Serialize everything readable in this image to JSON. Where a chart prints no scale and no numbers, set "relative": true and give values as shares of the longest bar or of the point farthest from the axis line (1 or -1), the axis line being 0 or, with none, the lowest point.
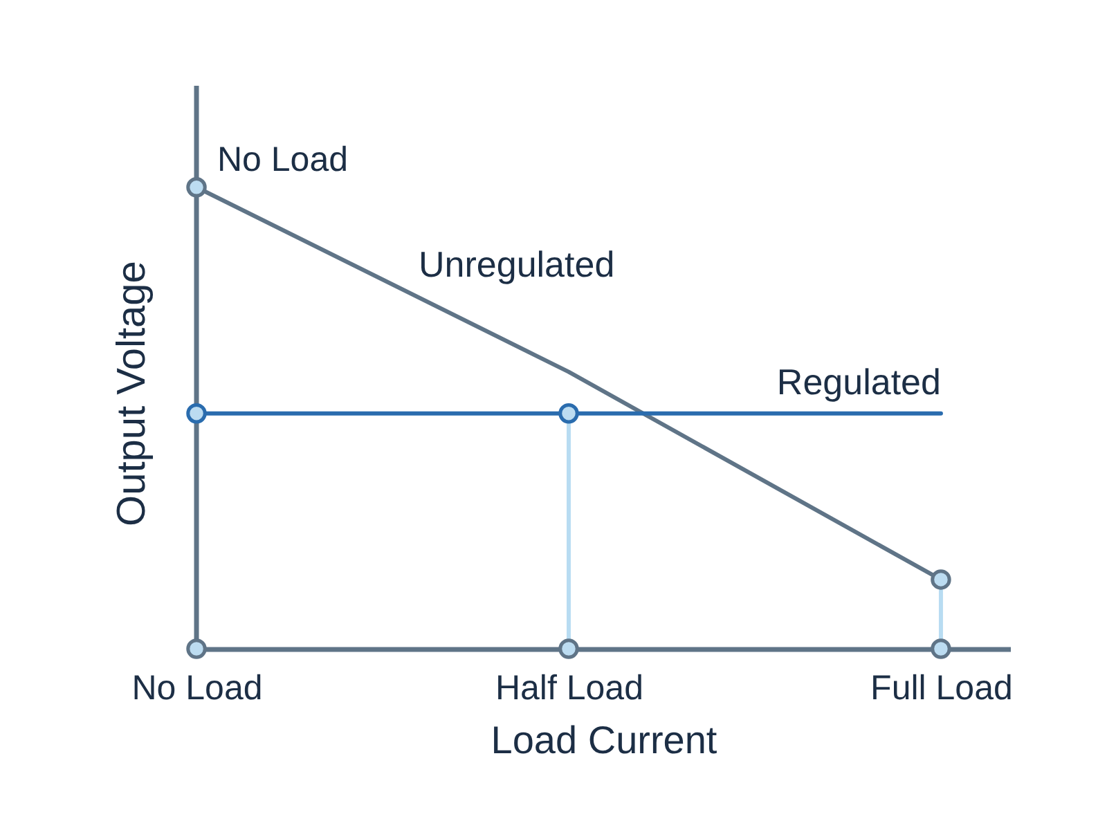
{
  "chart_data": {
    "type": "line",
    "relative": true,
    "xlabel": "Load Current",
    "ylabel": "Output Voltage",
    "categories": [
      "No Load",
      "Half Load",
      "Full Load"
    ],
    "line_style": "solid",
    "annotations": [
      {
        "text": "No Load",
        "x": "No Load",
        "y": 1
      }
    ],
    "ref_lines": [
      {
        "axis": "x",
        "value": "No Load",
        "color": "#5f7487"
      }
    ],
    "series": [
      {
        "name": "Unregulated",
        "color": "#5f7487",
        "values": [
          1,
          0.6,
          0.15
        ],
        "marker": "none"
      },
      {
        "name": "Regulated",
        "color": "#2a6cae",
        "values": [
          0.51,
          0.51,
          0.51
        ],
        "marker": "none"
      },
      {
        "color": "#b8dcf2",
        "x": [
          "Half Load",
          "Half Load"
        ],
        "values": [
          0,
          0.51
        ],
        "marker": "none"
      },
      {
        "color": "#b8dcf2",
        "x": [
          "Full Load",
          "Full Load"
        ],
        "values": [
          0,
          0.15
        ],
        "marker": "none"
      },
      {
        "type": "scatter",
        "color": "#5f7487",
        "x": [
          "No Load",
          "Full Load",
          "No Load",
          "Half Load",
          "Full Load"
        ],
        "values": [
          1,
          0.15,
          0,
          0,
          0
        ],
        "marker": "circle"
      },
      {
        "type": "scatter",
        "color": "#2a6cae",
        "x": [
          "No Load",
          "Half Load"
        ],
        "values": [
          0.51,
          0.51
        ],
        "marker": "circle"
      }
    ]
  }
}
